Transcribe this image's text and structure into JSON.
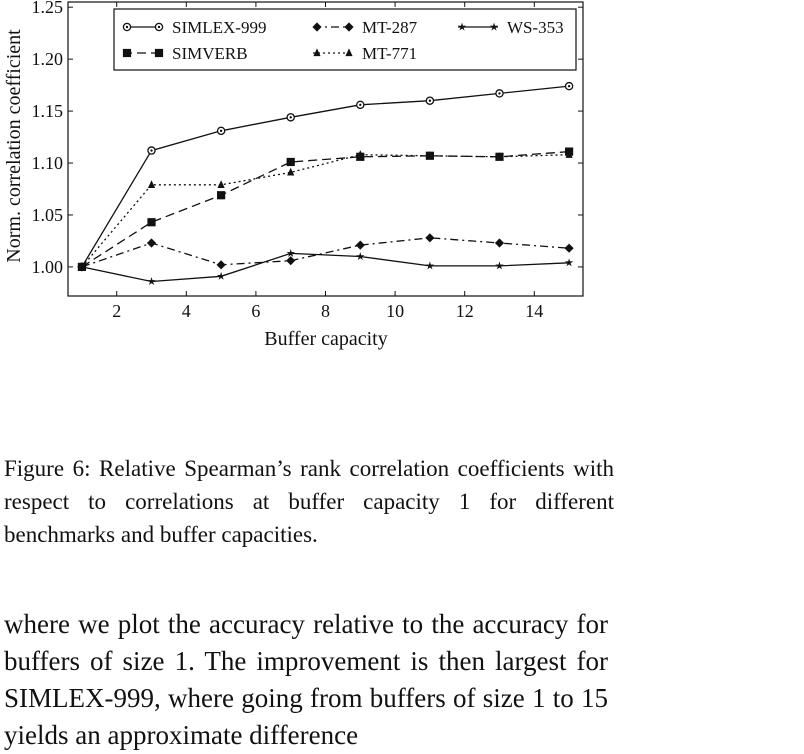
{
  "chart_data": {
    "type": "line",
    "xlabel": "Buffer capacity",
    "ylabel": "Norm. correlation coefficient",
    "xlim": [
      0.6,
      15.4
    ],
    "ylim": [
      0.972,
      1.255
    ],
    "x_ticks": [
      "2",
      "4",
      "6",
      "8",
      "10",
      "12",
      "14"
    ],
    "y_ticks": [
      "1.00",
      "1.05",
      "1.10",
      "1.15",
      "1.20",
      "1.25"
    ],
    "legend_position": "top",
    "x": [
      1,
      3,
      5,
      7,
      9,
      11,
      13,
      15
    ],
    "series": [
      {
        "name": "SIMLEX-999",
        "marker": "circle",
        "dash": "solid",
        "values": [
          1.0,
          1.112,
          1.131,
          1.144,
          1.156,
          1.16,
          1.167,
          1.174
        ]
      },
      {
        "name": "SIMVERB",
        "marker": "square",
        "dash": "dashed",
        "values": [
          1.0,
          1.043,
          1.069,
          1.101,
          1.106,
          1.107,
          1.106,
          1.111
        ]
      },
      {
        "name": "MT-287",
        "marker": "diamond",
        "dash": "dashdot",
        "values": [
          1.0,
          1.023,
          1.002,
          1.006,
          1.021,
          1.028,
          1.023,
          1.018
        ]
      },
      {
        "name": "MT-771",
        "marker": "triangle",
        "dash": "dotted",
        "values": [
          1.0,
          1.079,
          1.079,
          1.091,
          1.108,
          1.107,
          1.106,
          1.108
        ]
      },
      {
        "name": "WS-353",
        "marker": "star",
        "dash": "solid",
        "values": [
          1.0,
          0.986,
          0.991,
          1.013,
          1.01,
          1.001,
          1.001,
          1.004
        ]
      }
    ]
  },
  "caption": "Figure 6: Relative Spearman’s rank correlation coefficients with respect to correlations at buffer capacity 1 for different benchmarks and buffer capacities.",
  "body_text": "where we plot the accuracy relative to the accuracy for buffers of size 1. The improvement is then largest for SIMLEX-999, where going from buffers of size 1 to 15 yields an approximate difference"
}
